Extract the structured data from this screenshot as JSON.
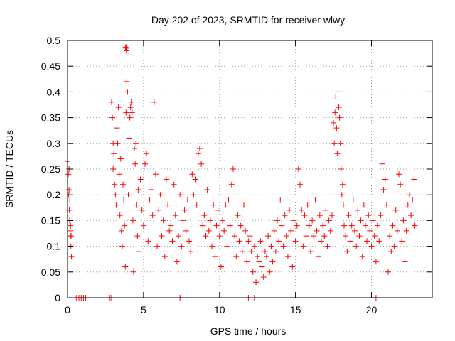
{
  "chart_data": {
    "type": "scatter",
    "title": "Day 202 of 2023, SRMTID for receiver wlwy",
    "xlabel": "GPS time / hours",
    "ylabel": "SRMTID / TECUs",
    "xlim": [
      0,
      24
    ],
    "ylim": [
      0,
      0.5
    ],
    "x_ticks": [
      0,
      5,
      10,
      15,
      20
    ],
    "x_tick_labels": [
      "0",
      "5",
      "10",
      "15",
      "20"
    ],
    "y_ticks": [
      0,
      0.05,
      0.1,
      0.15,
      0.2,
      0.25,
      0.3,
      0.35,
      0.4,
      0.45,
      0.5
    ],
    "y_tick_labels": [
      "0",
      "0.05",
      "0.1",
      "0.15",
      "0.2",
      "0.25",
      "0.3",
      "0.35",
      "0.4",
      "0.45",
      "0.5"
    ],
    "grid": true,
    "marker": "+",
    "series": [
      {
        "name": "SRMTID",
        "color": "#ff0000",
        "points": [
          [
            0.0,
            0.265
          ],
          [
            0.05,
            0.24
          ],
          [
            0.08,
            0.2
          ],
          [
            0.1,
            0.21
          ],
          [
            0.12,
            0.17
          ],
          [
            0.14,
            0.15
          ],
          [
            0.16,
            0.13
          ],
          [
            0.18,
            0.12
          ],
          [
            0.2,
            0.14
          ],
          [
            0.22,
            0.1
          ],
          [
            0.24,
            0.12
          ],
          [
            0.26,
            0.08
          ],
          [
            0.15,
            0.19
          ],
          [
            0.1,
            0.25
          ],
          [
            0.5,
            0.0
          ],
          [
            0.6,
            0.0
          ],
          [
            0.75,
            0.0
          ],
          [
            0.9,
            0.0
          ],
          [
            1.05,
            0.0
          ],
          [
            1.2,
            0.0
          ],
          [
            2.8,
            0.0
          ],
          [
            2.9,
            0.0
          ],
          [
            7.4,
            0.0
          ],
          [
            11.9,
            0.0
          ],
          [
            12.3,
            0.0
          ],
          [
            20.3,
            0.0
          ],
          [
            2.9,
            0.38
          ],
          [
            2.95,
            0.35
          ],
          [
            3.0,
            0.3
          ],
          [
            3.05,
            0.28
          ],
          [
            3.0,
            0.25
          ],
          [
            3.1,
            0.22
          ],
          [
            3.15,
            0.2
          ],
          [
            3.2,
            0.18
          ],
          [
            3.25,
            0.33
          ],
          [
            3.3,
            0.3
          ],
          [
            3.35,
            0.37
          ],
          [
            3.4,
            0.24
          ],
          [
            3.45,
            0.16
          ],
          [
            3.5,
            0.27
          ],
          [
            3.55,
            0.13
          ],
          [
            3.6,
            0.1
          ],
          [
            3.65,
            0.22
          ],
          [
            3.7,
            0.19
          ],
          [
            3.75,
            0.14
          ],
          [
            3.8,
            0.06
          ],
          [
            3.85,
            0.36
          ],
          [
            3.9,
            0.42
          ],
          [
            3.82,
            0.487
          ],
          [
            3.86,
            0.485
          ],
          [
            3.88,
            0.48
          ],
          [
            3.95,
            0.4
          ],
          [
            4.0,
            0.2
          ],
          [
            4.05,
            0.31
          ],
          [
            4.1,
            0.35
          ],
          [
            4.15,
            0.37
          ],
          [
            4.2,
            0.38
          ],
          [
            4.25,
            0.36
          ],
          [
            4.3,
            0.15
          ],
          [
            4.35,
            0.05
          ],
          [
            4.4,
            0.29
          ],
          [
            4.45,
            0.26
          ],
          [
            4.5,
            0.3
          ],
          [
            4.55,
            0.18
          ],
          [
            4.6,
            0.12
          ],
          [
            4.65,
            0.21
          ],
          [
            4.7,
            0.09
          ],
          [
            4.8,
            0.23
          ],
          [
            4.9,
            0.17
          ],
          [
            5.0,
            0.14
          ],
          [
            5.1,
            0.26
          ],
          [
            5.2,
            0.28
          ],
          [
            5.3,
            0.11
          ],
          [
            5.4,
            0.19
          ],
          [
            5.5,
            0.21
          ],
          [
            5.6,
            0.16
          ],
          [
            5.7,
            0.38
          ],
          [
            5.8,
            0.24
          ],
          [
            5.9,
            0.1
          ],
          [
            6.0,
            0.17
          ],
          [
            6.1,
            0.2
          ],
          [
            6.2,
            0.12
          ],
          [
            6.3,
            0.15
          ],
          [
            6.4,
            0.08
          ],
          [
            6.5,
            0.23
          ],
          [
            6.6,
            0.18
          ],
          [
            6.7,
            0.13
          ],
          [
            6.8,
            0.14
          ],
          [
            6.9,
            0.11
          ],
          [
            7.0,
            0.22
          ],
          [
            7.1,
            0.16
          ],
          [
            7.2,
            0.07
          ],
          [
            7.3,
            0.12
          ],
          [
            7.4,
            0.2
          ],
          [
            7.5,
            0.1
          ],
          [
            7.6,
            0.15
          ],
          [
            7.7,
            0.17
          ],
          [
            7.8,
            0.13
          ],
          [
            7.9,
            0.19
          ],
          [
            8.0,
            0.11
          ],
          [
            8.1,
            0.09
          ],
          [
            8.2,
            0.24
          ],
          [
            8.3,
            0.2
          ],
          [
            8.4,
            0.23
          ],
          [
            8.5,
            0.18
          ],
          [
            8.6,
            0.28
          ],
          [
            8.7,
            0.29
          ],
          [
            8.8,
            0.26
          ],
          [
            8.9,
            0.14
          ],
          [
            9.0,
            0.16
          ],
          [
            9.1,
            0.12
          ],
          [
            9.2,
            0.21
          ],
          [
            9.3,
            0.13
          ],
          [
            9.4,
            0.15
          ],
          [
            9.5,
            0.1
          ],
          [
            9.6,
            0.18
          ],
          [
            9.7,
            0.08
          ],
          [
            9.8,
            0.14
          ],
          [
            9.9,
            0.17
          ],
          [
            10.0,
            0.12
          ],
          [
            10.1,
            0.06
          ],
          [
            10.2,
            0.15
          ],
          [
            10.3,
            0.13
          ],
          [
            10.4,
            0.18
          ],
          [
            10.5,
            0.1
          ],
          [
            10.6,
            0.19
          ],
          [
            10.7,
            0.14
          ],
          [
            10.8,
            0.22
          ],
          [
            10.9,
            0.25
          ],
          [
            11.0,
            0.12
          ],
          [
            11.1,
            0.08
          ],
          [
            11.2,
            0.16
          ],
          [
            11.3,
            0.11
          ],
          [
            11.4,
            0.14
          ],
          [
            11.5,
            0.09
          ],
          [
            11.6,
            0.18
          ],
          [
            11.7,
            0.13
          ],
          [
            11.8,
            0.07
          ],
          [
            11.9,
            0.11
          ],
          [
            12.0,
            0.12
          ],
          [
            12.1,
            0.09
          ],
          [
            12.2,
            0.05
          ],
          [
            12.3,
            0.1
          ],
          [
            12.4,
            0.03
          ],
          [
            12.5,
            0.08
          ],
          [
            12.6,
            0.07
          ],
          [
            12.7,
            0.11
          ],
          [
            12.8,
            0.06
          ],
          [
            12.9,
            0.04
          ],
          [
            13.0,
            0.09
          ],
          [
            13.1,
            0.08
          ],
          [
            13.2,
            0.12
          ],
          [
            13.3,
            0.05
          ],
          [
            13.4,
            0.1
          ],
          [
            13.5,
            0.07
          ],
          [
            13.6,
            0.13
          ],
          [
            13.7,
            0.09
          ],
          [
            13.8,
            0.15
          ],
          [
            13.9,
            0.11
          ],
          [
            14.0,
            0.19
          ],
          [
            14.1,
            0.14
          ],
          [
            14.2,
            0.1
          ],
          [
            14.3,
            0.16
          ],
          [
            14.4,
            0.12
          ],
          [
            14.5,
            0.08
          ],
          [
            14.6,
            0.17
          ],
          [
            14.7,
            0.13
          ],
          [
            14.8,
            0.06
          ],
          [
            14.9,
            0.15
          ],
          [
            15.0,
            0.11
          ],
          [
            15.1,
            0.14
          ],
          [
            15.2,
            0.25
          ],
          [
            15.3,
            0.22
          ],
          [
            15.4,
            0.17
          ],
          [
            15.5,
            0.1
          ],
          [
            15.6,
            0.16
          ],
          [
            15.7,
            0.12
          ],
          [
            15.8,
            0.18
          ],
          [
            15.9,
            0.14
          ],
          [
            16.0,
            0.09
          ],
          [
            16.1,
            0.15
          ],
          [
            16.2,
            0.12
          ],
          [
            16.3,
            0.19
          ],
          [
            16.4,
            0.13
          ],
          [
            16.5,
            0.08
          ],
          [
            16.6,
            0.16
          ],
          [
            16.7,
            0.11
          ],
          [
            16.8,
            0.14
          ],
          [
            16.9,
            0.12
          ],
          [
            17.0,
            0.17
          ],
          [
            17.1,
            0.1
          ],
          [
            17.2,
            0.15
          ],
          [
            17.3,
            0.13
          ],
          [
            17.4,
            0.16
          ],
          [
            17.5,
            0.34
          ],
          [
            17.55,
            0.3
          ],
          [
            17.6,
            0.36
          ],
          [
            17.65,
            0.39
          ],
          [
            17.7,
            0.33
          ],
          [
            17.75,
            0.28
          ],
          [
            17.8,
            0.4
          ],
          [
            17.85,
            0.37
          ],
          [
            17.9,
            0.35
          ],
          [
            17.95,
            0.3
          ],
          [
            18.0,
            0.25
          ],
          [
            18.05,
            0.2
          ],
          [
            18.1,
            0.22
          ],
          [
            18.15,
            0.18
          ],
          [
            18.2,
            0.14
          ],
          [
            18.3,
            0.12
          ],
          [
            18.4,
            0.09
          ],
          [
            18.5,
            0.16
          ],
          [
            18.6,
            0.11
          ],
          [
            18.7,
            0.14
          ],
          [
            18.8,
            0.19
          ],
          [
            18.9,
            0.13
          ],
          [
            19.0,
            0.1
          ],
          [
            19.1,
            0.17
          ],
          [
            19.2,
            0.12
          ],
          [
            19.3,
            0.15
          ],
          [
            19.4,
            0.08
          ],
          [
            19.5,
            0.18
          ],
          [
            19.6,
            0.14
          ],
          [
            19.7,
            0.11
          ],
          [
            19.8,
            0.16
          ],
          [
            19.9,
            0.13
          ],
          [
            20.0,
            0.1
          ],
          [
            20.1,
            0.15
          ],
          [
            20.2,
            0.12
          ],
          [
            20.3,
            0.07
          ],
          [
            20.4,
            0.14
          ],
          [
            20.5,
            0.11
          ],
          [
            20.6,
            0.16
          ],
          [
            20.7,
            0.26
          ],
          [
            20.8,
            0.21
          ],
          [
            20.9,
            0.23
          ],
          [
            21.0,
            0.18
          ],
          [
            21.1,
            0.05
          ],
          [
            21.2,
            0.12
          ],
          [
            21.3,
            0.09
          ],
          [
            21.4,
            0.14
          ],
          [
            21.5,
            0.1
          ],
          [
            21.6,
            0.17
          ],
          [
            21.7,
            0.13
          ],
          [
            21.8,
            0.24
          ],
          [
            21.9,
            0.22
          ],
          [
            22.0,
            0.11
          ],
          [
            22.1,
            0.15
          ],
          [
            22.2,
            0.07
          ],
          [
            22.3,
            0.13
          ],
          [
            22.4,
            0.18
          ],
          [
            22.5,
            0.2
          ],
          [
            22.6,
            0.16
          ],
          [
            22.7,
            0.19
          ],
          [
            22.8,
            0.23
          ],
          [
            22.85,
            0.14
          ]
        ]
      }
    ]
  }
}
